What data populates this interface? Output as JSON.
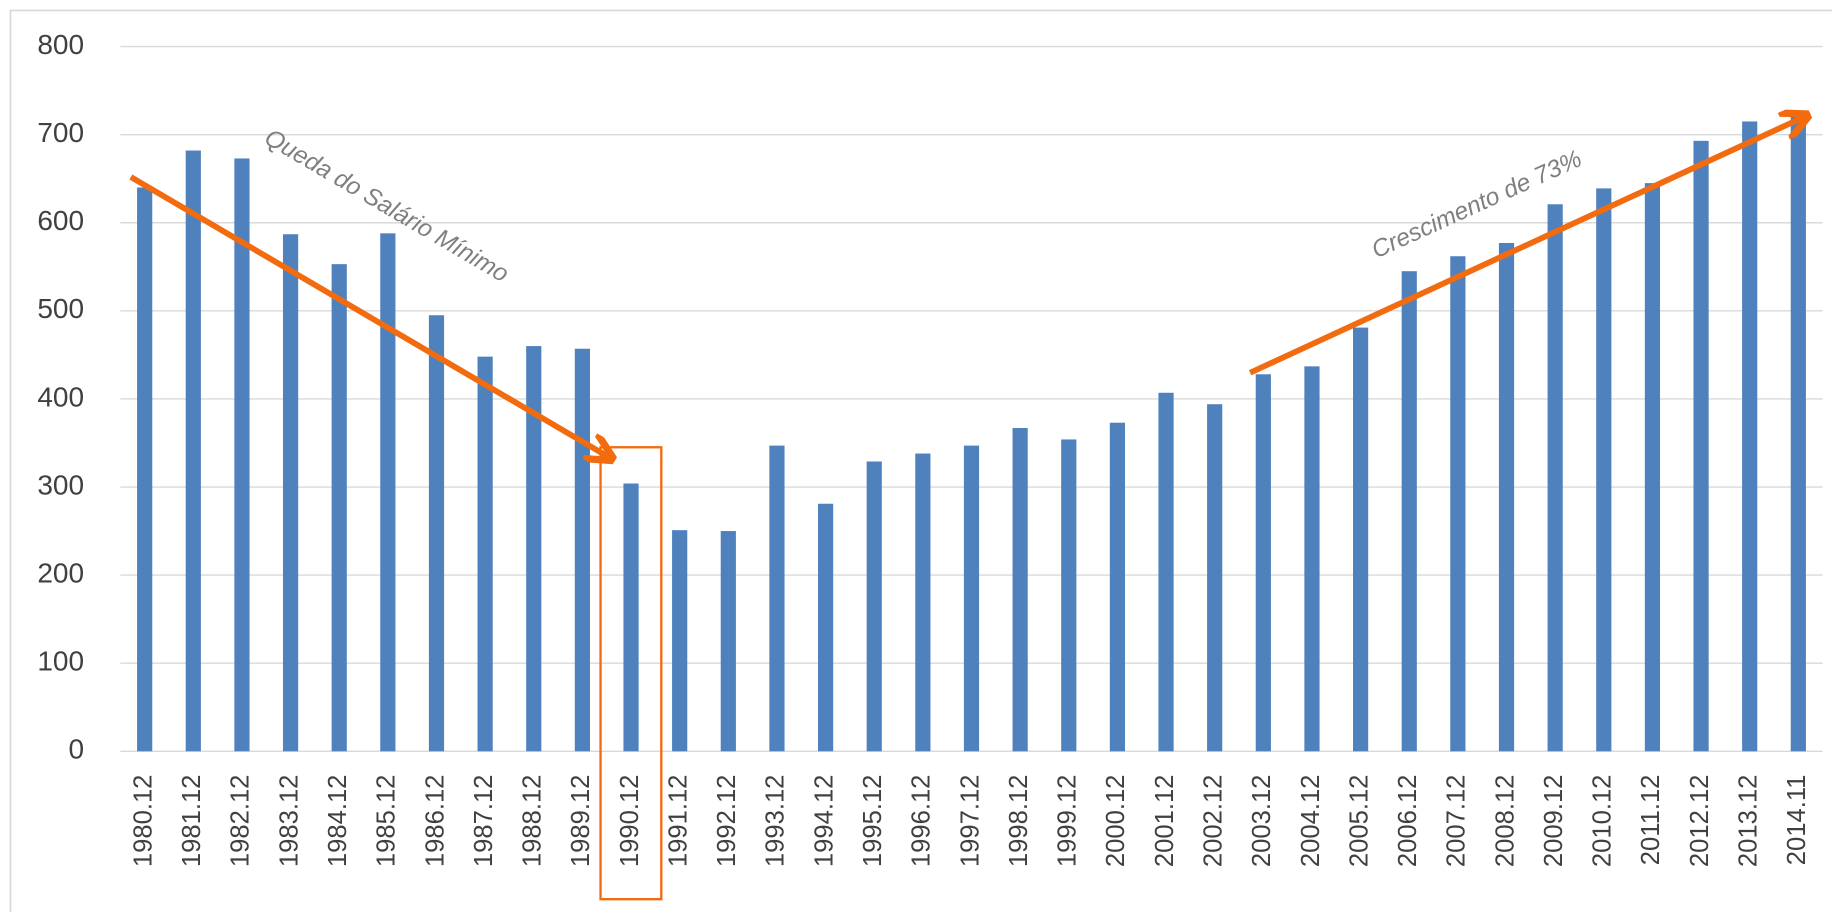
{
  "chart_data": {
    "type": "bar",
    "categories": [
      "1980.12",
      "1981.12",
      "1982.12",
      "1983.12",
      "1984.12",
      "1985.12",
      "1986.12",
      "1987.12",
      "1988.12",
      "1989.12",
      "1990.12",
      "1991.12",
      "1992.12",
      "1993.12",
      "1994.12",
      "1995.12",
      "1996.12",
      "1997.12",
      "1998.12",
      "1999.12",
      "2000.12",
      "2001.12",
      "2002.12",
      "2003.12",
      "2004.12",
      "2005.12",
      "2006.12",
      "2007.12",
      "2008.12",
      "2009.12",
      "2010.12",
      "2011.12",
      "2012.12",
      "2013.12",
      "2014.11"
    ],
    "values": [
      640,
      682,
      673,
      587,
      553,
      588,
      495,
      448,
      460,
      457,
      304,
      251,
      250,
      347,
      281,
      329,
      338,
      347,
      367,
      354,
      373,
      407,
      394,
      428,
      437,
      481,
      545,
      562,
      577,
      621,
      639,
      645,
      693,
      715,
      724
    ],
    "color": "#4f81bd",
    "ylim": [
      0,
      800
    ],
    "yticks": [
      0,
      100,
      200,
      300,
      400,
      500,
      600,
      700,
      800
    ],
    "grid": true,
    "annotations": [
      "Queda do Salário Mínimo",
      "Crescimento de 73%"
    ]
  }
}
